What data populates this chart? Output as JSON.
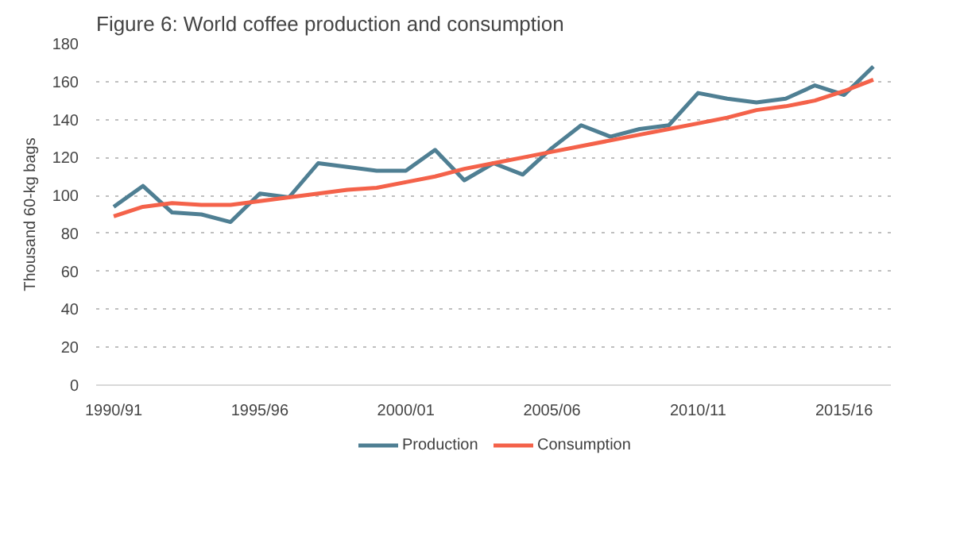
{
  "chart_data": {
    "type": "line",
    "title": "Figure 6: World coffee production and consumption",
    "ylabel": "Thousand 60-kg bags",
    "categories": [
      "1990/91",
      null,
      null,
      null,
      null,
      "1995/96",
      null,
      null,
      null,
      null,
      "2000/01",
      null,
      null,
      null,
      null,
      "2005/06",
      null,
      null,
      null,
      null,
      "2010/11",
      null,
      null,
      null,
      null,
      "2015/16",
      null
    ],
    "series": [
      {
        "name": "Production",
        "color": "#4f7f93",
        "values": [
          94,
          105,
          91,
          90,
          86,
          101,
          99,
          117,
          115,
          113,
          113,
          124,
          108,
          117,
          111,
          125,
          137,
          131,
          135,
          137,
          154,
          151,
          149,
          151,
          158,
          153,
          168
        ]
      },
      {
        "name": "Consumption",
        "color": "#f4624a",
        "values": [
          89,
          94,
          96,
          95,
          95,
          97,
          99,
          101,
          103,
          104,
          107,
          110,
          114,
          117,
          120,
          123,
          126,
          129,
          132,
          135,
          138,
          141,
          145,
          147,
          150,
          155,
          161
        ]
      }
    ],
    "ylim": [
      0,
      180
    ],
    "yticks": [
      0,
      20,
      40,
      60,
      80,
      100,
      120,
      140,
      160,
      180
    ],
    "grid": "y",
    "legend": "bottom",
    "line_style": "solid",
    "marker": "none"
  }
}
